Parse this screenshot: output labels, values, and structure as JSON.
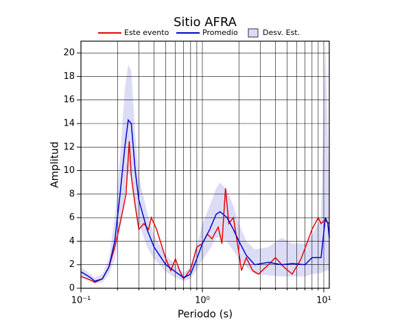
{
  "chart_data": {
    "type": "line",
    "title": "Sitio AFRA",
    "x_label": "Periodo (s)",
    "y_label": "Amplitud",
    "log_x": true,
    "grid": true,
    "xlim": [
      0.1,
      11.1
    ],
    "ylim": [
      0,
      21
    ],
    "xticks": [
      {
        "value": 0.1,
        "label": "10⁻¹"
      },
      {
        "value": 1,
        "label": "10⁰"
      },
      {
        "value": 10,
        "label": "10¹"
      }
    ],
    "xminor_ticks": [
      0.2,
      0.3,
      0.4,
      0.5,
      0.6,
      0.7,
      0.8,
      0.9,
      2,
      3,
      4,
      5,
      6,
      7,
      8,
      9
    ],
    "yticks": [
      0,
      2,
      4,
      6,
      8,
      10,
      12,
      14,
      16,
      18,
      20
    ],
    "band": {
      "name": "Desv. Est.",
      "color": "#dcdcf7",
      "x": [
        0.1,
        0.12,
        0.13,
        0.15,
        0.17,
        0.19,
        0.21,
        0.23,
        0.245,
        0.26,
        0.28,
        0.3,
        0.35,
        0.4,
        0.5,
        0.6,
        0.7,
        0.8,
        0.9,
        1.0,
        1.15,
        1.3,
        1.4,
        1.6,
        1.8,
        2.0,
        2.3,
        2.7,
        3.5,
        4.5,
        5.5,
        7,
        8,
        9.5,
        10.3,
        10.8,
        11.1
      ],
      "upper": [
        1.8,
        1.2,
        0.9,
        1.2,
        2.5,
        6,
        11,
        17,
        19,
        18.5,
        13,
        9.5,
        6.5,
        4.5,
        2.8,
        2,
        1.3,
        1.8,
        3.5,
        5.5,
        7,
        8.5,
        9,
        8.3,
        7,
        5.5,
        4,
        3.3,
        3.5,
        4.3,
        3.8,
        3.8,
        4.5,
        6,
        21,
        13,
        8
      ],
      "lower": [
        1,
        0.6,
        0.4,
        0.5,
        1.2,
        2.5,
        5,
        8,
        9.8,
        9.5,
        7,
        5.5,
        3.5,
        2.5,
        1.4,
        0.9,
        0.6,
        0.8,
        1.6,
        2.4,
        3.3,
        4.3,
        4.3,
        3.9,
        3.2,
        2.5,
        1.8,
        1.2,
        1.1,
        1.0,
        1.0,
        1.0,
        1.2,
        1.3,
        1.5,
        1.5,
        1.4
      ]
    },
    "series": [
      {
        "name": "Este evento",
        "color": "#e60000",
        "x": [
          0.1,
          0.12,
          0.13,
          0.15,
          0.17,
          0.19,
          0.21,
          0.22,
          0.235,
          0.245,
          0.25,
          0.26,
          0.28,
          0.3,
          0.33,
          0.36,
          0.38,
          0.42,
          0.5,
          0.55,
          0.6,
          0.65,
          0.7,
          0.8,
          0.9,
          1.0,
          1.1,
          1.2,
          1.35,
          1.45,
          1.55,
          1.65,
          1.8,
          2.0,
          2.1,
          2.3,
          2.6,
          2.9,
          3.5,
          4.0,
          4.7,
          5.5,
          6.5,
          8,
          9,
          9.5,
          10.2,
          11.1
        ],
        "values": [
          1,
          0.7,
          0.5,
          0.8,
          1.8,
          3.5,
          5.5,
          6.5,
          8,
          11,
          12.5,
          9.5,
          7,
          5,
          5.5,
          5,
          6,
          5,
          2.5,
          1.5,
          2.5,
          1.5,
          0.8,
          1.6,
          3.5,
          3.8,
          4.6,
          4.2,
          5.2,
          3.8,
          8.5,
          5.5,
          6,
          3,
          1.5,
          2.6,
          1.5,
          1.2,
          2,
          2.6,
          1.8,
          1.2,
          2.5,
          5,
          6,
          5.5,
          5.8,
          5.5
        ]
      },
      {
        "name": "Promedio",
        "color": "#0000cc",
        "x": [
          0.1,
          0.12,
          0.13,
          0.15,
          0.17,
          0.19,
          0.21,
          0.23,
          0.245,
          0.26,
          0.28,
          0.3,
          0.35,
          0.4,
          0.5,
          0.6,
          0.7,
          0.8,
          0.9,
          1.0,
          1.15,
          1.3,
          1.4,
          1.6,
          1.8,
          2.0,
          2.3,
          2.7,
          3.5,
          4.5,
          5.5,
          7,
          8,
          9.5,
          10.3,
          10.8,
          11.1
        ],
        "values": [
          1.4,
          0.9,
          0.6,
          0.8,
          1.8,
          4,
          8,
          12,
          14.3,
          14,
          10,
          7.5,
          5,
          3.5,
          2,
          1.4,
          0.9,
          1.2,
          2.5,
          3.8,
          5,
          6.3,
          6.5,
          6,
          5,
          4,
          2.8,
          2,
          2.2,
          2,
          2.1,
          2,
          2.6,
          2.6,
          6,
          5.5,
          4.3
        ]
      }
    ]
  }
}
